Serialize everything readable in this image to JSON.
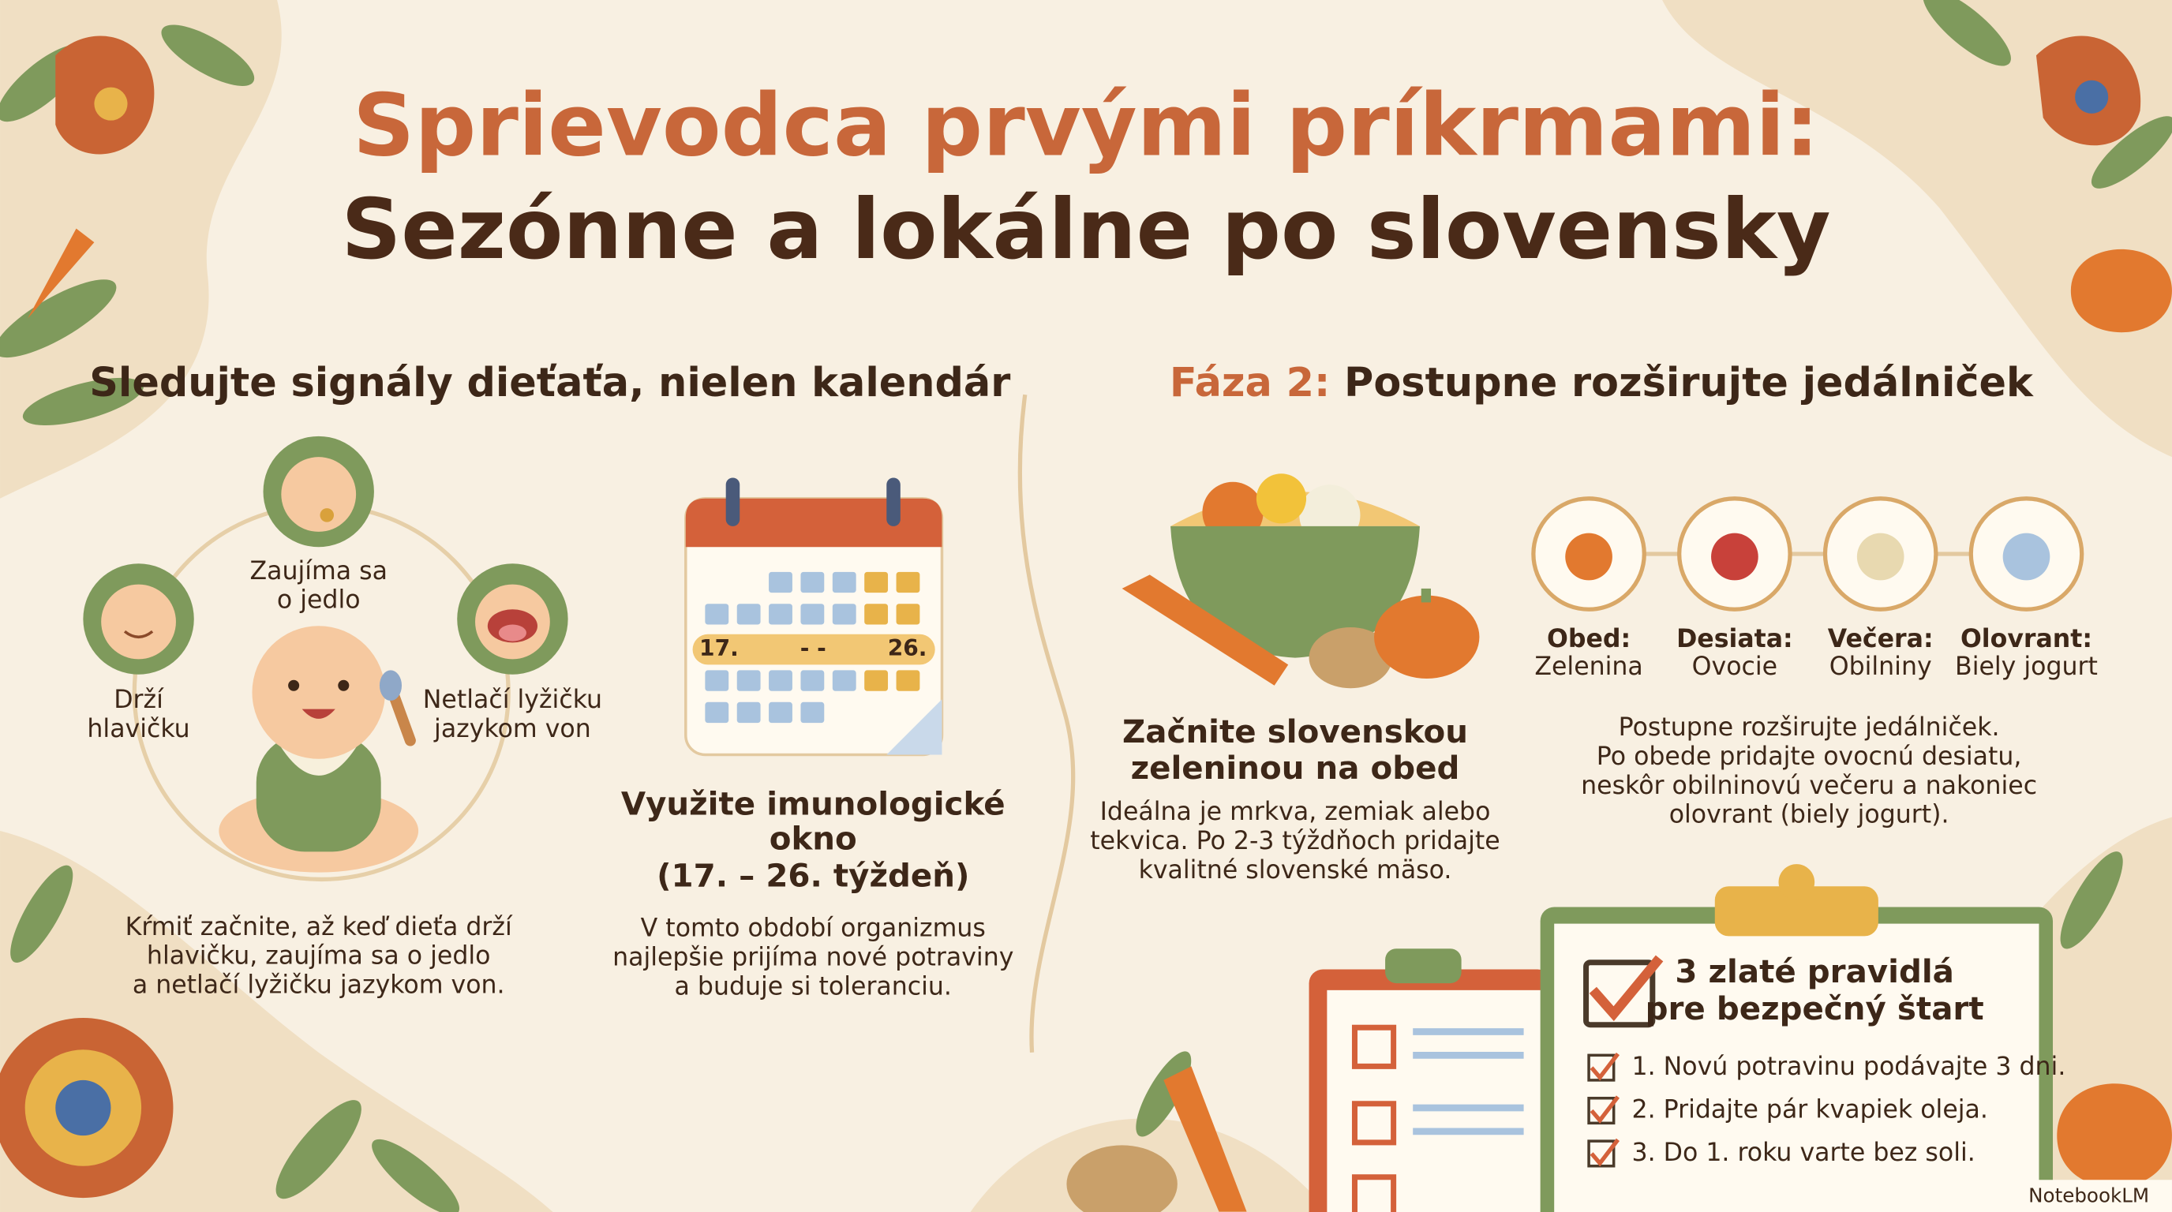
{
  "title": {
    "line1": "Sprievodca prvými príkrmami:",
    "line2": "Sezónne a lokálne po slovensky"
  },
  "left": {
    "heading": "Sledujte signály dieťaťa, nielen kalendár",
    "signs": [
      {
        "lines": [
          "Zaujíma sa",
          "o jedlo"
        ]
      },
      {
        "lines": [
          "Drží",
          "hlavičku"
        ]
      },
      {
        "lines": [
          "Netlačí lyžičku",
          "jazykom von"
        ]
      }
    ],
    "caption": [
      "Kŕmiť začnite, až keď dieťa drží",
      "hlavičku, zaujíma sa o jedlo",
      "a netlačí lyžičku jazykom von."
    ],
    "calendar": {
      "start": "17.",
      "dash": "- -",
      "end": "26."
    },
    "window_heading": [
      "Využite imunologické",
      "okno",
      "(17. – 26. týždeň)"
    ],
    "window_text": [
      "V tomto období organizmus",
      "najlepšie prijíma nové potraviny",
      "a buduje si toleranciu."
    ]
  },
  "right": {
    "heading_prefix": "Fáza 2:",
    "heading": "Postupne rozširujte jedálniček",
    "veg_heading": [
      "Začnite slovenskou",
      "zeleninou na obed"
    ],
    "veg_text": [
      "Ideálna je mrkva, zemiak alebo",
      "tekvica. Po 2-3 týždňoch pridajte",
      "kvalitné slovenské mäso."
    ],
    "meals": [
      {
        "label": "Obed:",
        "item": "Zelenina"
      },
      {
        "label": "Desiata:",
        "item": "Ovocie"
      },
      {
        "label": "Večera:",
        "item": "Obilniny"
      },
      {
        "label": "Olovrant:",
        "item": "Biely jogurt"
      }
    ],
    "meals_text": [
      "Postupne rozširujte jedálniček.",
      "Po obede pridajte ovocnú desiatu,",
      "neskôr obilninovú večeru a nakoniec",
      "olovrant (biely jogurt)."
    ],
    "rules_heading": [
      "3 zlaté pravidlá",
      "pre bezpečný štart"
    ],
    "rules": [
      "1. Novú potravinu podávajte 3 dni.",
      "2. Pridajte pár kvapiek oleja.",
      "3. Do 1. roku varte bez soli."
    ]
  },
  "watermark": "NotebookLM"
}
